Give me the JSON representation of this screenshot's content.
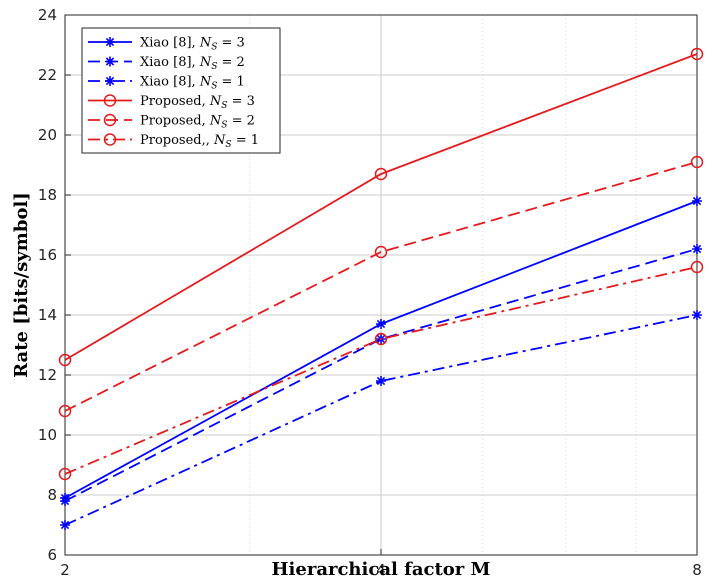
{
  "chart_data": {
    "type": "line",
    "xlabel": "Hierarchical factor M",
    "ylabel": "Rate [bits/symbol]",
    "x": [
      2,
      4,
      8
    ],
    "xscale": "log2",
    "xlim": [
      2,
      8
    ],
    "ylim": [
      6,
      24
    ],
    "yticks": [
      6,
      8,
      10,
      12,
      14,
      16,
      18,
      20,
      22,
      24
    ],
    "xticks": [
      2,
      4,
      8
    ],
    "grid": "major-and-minor",
    "legend_position": "top-left",
    "series": [
      {
        "name": "Xiao [8], N_S = 3",
        "name_text": "Xiao [8], ",
        "name_var": "N",
        "name_sub": "S",
        "name_val": " = 3",
        "values": [
          7.9,
          13.7,
          17.8
        ],
        "color": "#0000ff",
        "dash": "solid",
        "marker": "asterisk"
      },
      {
        "name": "Xiao [8], N_S = 2",
        "name_text": "Xiao [8], ",
        "name_var": "N",
        "name_sub": "S",
        "name_val": " = 2",
        "values": [
          7.8,
          13.2,
          16.2
        ],
        "color": "#0000ff",
        "dash": "dashed",
        "marker": "asterisk"
      },
      {
        "name": "Xiao [8], N_S = 1",
        "name_text": "Xiao [8], ",
        "name_var": "N",
        "name_sub": "S",
        "name_val": " = 1",
        "values": [
          7.0,
          11.8,
          14.0
        ],
        "color": "#0000ff",
        "dash": "dashdot",
        "marker": "asterisk"
      },
      {
        "name": "Proposed, N_S = 3",
        "name_text": "Proposed, ",
        "name_var": "N",
        "name_sub": "S",
        "name_val": " = 3",
        "values": [
          12.5,
          18.7,
          22.7
        ],
        "color": "#e41a1c",
        "dash": "solid",
        "marker": "circle"
      },
      {
        "name": "Proposed, N_S = 2",
        "name_text": "Proposed, ",
        "name_var": "N",
        "name_sub": "S",
        "name_val": " = 2",
        "values": [
          10.8,
          16.1,
          19.1
        ],
        "color": "#e41a1c",
        "dash": "dashed",
        "marker": "circle"
      },
      {
        "name": "Proposed,, N_S = 1",
        "name_text": "Proposed,, ",
        "name_var": "N",
        "name_sub": "S",
        "name_val": " = 1",
        "values": [
          8.7,
          13.2,
          15.6
        ],
        "color": "#e41a1c",
        "dash": "dashdot",
        "marker": "circle"
      }
    ]
  }
}
